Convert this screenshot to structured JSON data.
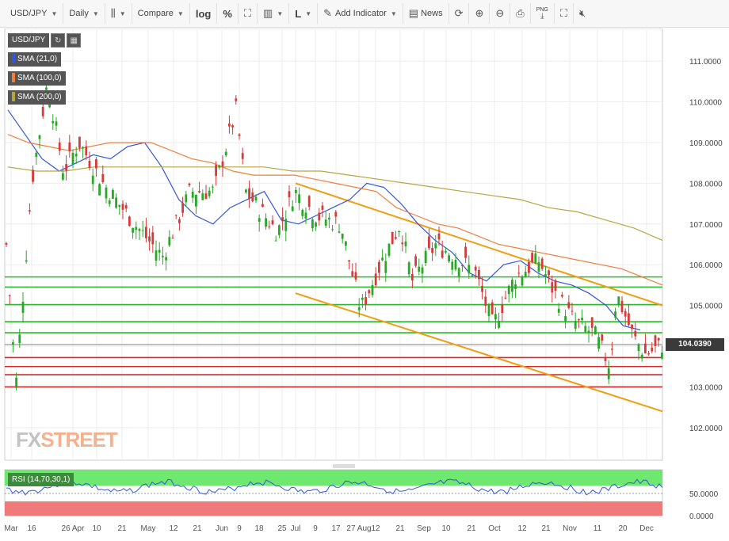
{
  "toolbar": {
    "symbol": "USD/JPY",
    "interval": "Daily",
    "compare": "Compare",
    "log": "log",
    "percent": "%",
    "line_style": "L",
    "add_indicator": "Add Indicator",
    "news": "News",
    "png": "PNG",
    "icons": [
      "candlestick-icon",
      "area-chart-icon",
      "bar-chart-icon",
      "draw-tool-icon",
      "news-icon",
      "refresh-icon",
      "zoom-in-icon",
      "zoom-out-icon",
      "print-icon",
      "download-icon",
      "fullscreen-icon",
      "mute-icon"
    ]
  },
  "legend": {
    "symbol": "USD/JPY",
    "sma21": "SMA (21,0)",
    "sma100": "SMA (100,0)",
    "sma200": "SMA (200,0)",
    "colors": {
      "sma21": "#3355dd",
      "sma100": "#f07f3c",
      "sma200": "#b7a540"
    }
  },
  "brand": {
    "part1": "FX",
    "part2": "STREET"
  },
  "rsi": {
    "label": "RSI (14,70,30,1)",
    "ticks": [
      "50.0000",
      "0.0000"
    ]
  },
  "price_badge": "104.0390",
  "chart_data": {
    "type": "line",
    "title": "",
    "ylim": [
      101.2,
      111.8
    ],
    "y_ticks": [
      "111.0000",
      "110.0000",
      "109.0000",
      "108.0000",
      "107.0000",
      "106.0000",
      "105.0000",
      "104.0000",
      "103.0000",
      "102.0000"
    ],
    "x_ticks": [
      "Mar",
      "16",
      "26 Apr",
      "10",
      "21",
      "May",
      "12",
      "21",
      "Jun",
      "9",
      "18",
      "25",
      "Jul",
      "9",
      "17",
      "27 Aug",
      "12",
      "21",
      "Sep",
      "10",
      "21",
      "Oct",
      "12",
      "21",
      "Nov",
      "11",
      "20",
      "Dec"
    ],
    "horizontal_levels": {
      "green": [
        105.7,
        105.45,
        105.02,
        104.6,
        104.33
      ],
      "red": [
        103.72,
        103.5,
        103.3,
        103.0
      ]
    },
    "last_price": 104.039,
    "series": [
      {
        "key": "sma21",
        "values": [
          109.8,
          109.2,
          108.6,
          108.3,
          108.5,
          108.7,
          108.6,
          108.9,
          109.0,
          108.4,
          107.6,
          107.2,
          107.0,
          107.4,
          107.6,
          107.8,
          107.1,
          107.0,
          107.2,
          107.4,
          107.6,
          108.0,
          107.9,
          107.5,
          107.0,
          106.6,
          106.3,
          105.8,
          105.6,
          106.0,
          106.1,
          105.8,
          105.6,
          105.5,
          105.3,
          105.0,
          104.5,
          104.4
        ]
      },
      {
        "key": "sma100",
        "values": [
          109.2,
          109.0,
          108.9,
          108.8,
          108.9,
          109.0,
          109.0,
          109.0,
          108.8,
          108.6,
          108.5,
          108.3,
          108.2,
          108.2,
          108.2,
          108.1,
          108.0,
          107.9,
          107.8,
          107.4,
          107.2,
          107.0,
          106.9,
          106.7,
          106.5,
          106.4,
          106.3,
          106.2,
          106.1,
          106.0,
          105.9,
          105.7,
          105.5
        ]
      },
      {
        "key": "sma200",
        "values": [
          108.4,
          108.3,
          108.3,
          108.4,
          108.4,
          108.4,
          108.4,
          108.4,
          108.4,
          108.4,
          108.3,
          108.3,
          108.2,
          108.1,
          108.0,
          107.9,
          107.8,
          107.7,
          107.6,
          107.4,
          107.3,
          107.1,
          106.9,
          106.6
        ]
      }
    ],
    "trendlines": [
      {
        "from": [
          108.0,
          "Jul"
        ],
        "to": [
          105.0,
          "Dec"
        ],
        "color": "#f39c12"
      },
      {
        "from": [
          105.3,
          "Jul"
        ],
        "to": [
          102.4,
          "Dec"
        ],
        "color": "#f39c12"
      }
    ],
    "grid": true
  }
}
